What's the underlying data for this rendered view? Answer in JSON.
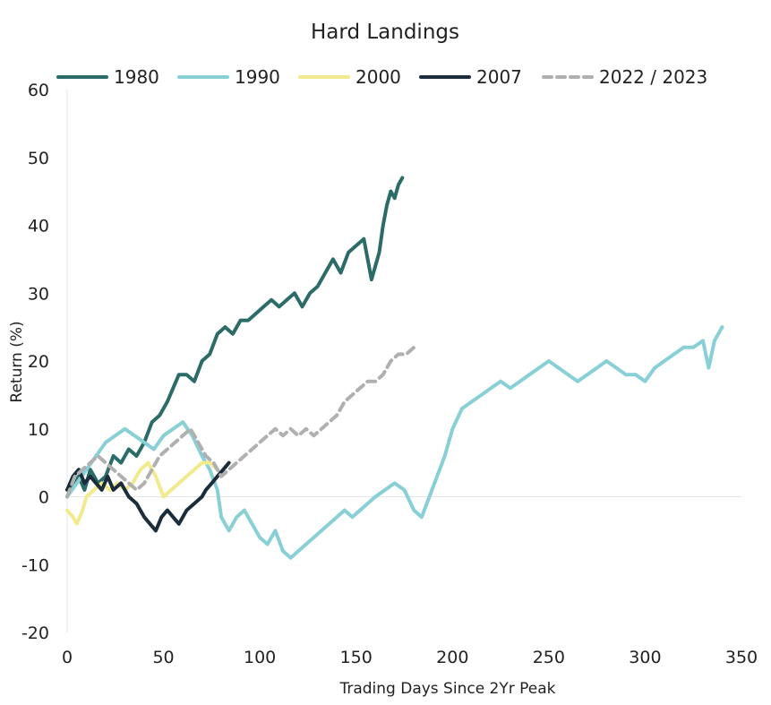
{
  "chart_data": {
    "type": "line",
    "title": "Hard Landings",
    "xlabel": "Trading Days Since 2Yr Peak",
    "ylabel": "Return (%)",
    "xlim": [
      0,
      350
    ],
    "ylim": [
      -20,
      60
    ],
    "xticks": [
      0,
      50,
      100,
      150,
      200,
      250,
      300,
      350
    ],
    "yticks": [
      -20,
      -10,
      0,
      10,
      20,
      30,
      40,
      50,
      60
    ],
    "xtick_labels": [
      "0",
      "50",
      "100",
      "150",
      "200",
      "250",
      "300",
      "350"
    ],
    "ytick_labels": [
      "-20",
      "-10",
      "0",
      "10",
      "20",
      "30",
      "40",
      "50",
      "60"
    ],
    "grid": false,
    "legend_position": "top",
    "series": [
      {
        "name": "1980",
        "color": "#2b6b68",
        "dashed": false,
        "points": [
          [
            0,
            0
          ],
          [
            3,
            2
          ],
          [
            6,
            3
          ],
          [
            9,
            1
          ],
          [
            12,
            4
          ],
          [
            16,
            2
          ],
          [
            20,
            3
          ],
          [
            24,
            6
          ],
          [
            28,
            5
          ],
          [
            32,
            7
          ],
          [
            36,
            6
          ],
          [
            40,
            8
          ],
          [
            44,
            11
          ],
          [
            48,
            12
          ],
          [
            52,
            14
          ],
          [
            55,
            16
          ],
          [
            58,
            18
          ],
          [
            62,
            18
          ],
          [
            66,
            17
          ],
          [
            70,
            20
          ],
          [
            74,
            21
          ],
          [
            78,
            24
          ],
          [
            82,
            25
          ],
          [
            86,
            24
          ],
          [
            90,
            26
          ],
          [
            94,
            26
          ],
          [
            98,
            27
          ],
          [
            102,
            28
          ],
          [
            106,
            29
          ],
          [
            110,
            28
          ],
          [
            114,
            29
          ],
          [
            118,
            30
          ],
          [
            122,
            28
          ],
          [
            126,
            30
          ],
          [
            130,
            31
          ],
          [
            134,
            33
          ],
          [
            138,
            35
          ],
          [
            142,
            33
          ],
          [
            146,
            36
          ],
          [
            150,
            37
          ],
          [
            154,
            38
          ],
          [
            156,
            35
          ],
          [
            158,
            32
          ],
          [
            160,
            34
          ],
          [
            162,
            36
          ],
          [
            164,
            40
          ],
          [
            166,
            43
          ],
          [
            168,
            45
          ],
          [
            170,
            44
          ],
          [
            172,
            46
          ],
          [
            174,
            47
          ]
        ]
      },
      {
        "name": "1990",
        "color": "#88d0d6",
        "dashed": false,
        "points": [
          [
            0,
            0
          ],
          [
            5,
            2
          ],
          [
            10,
            4
          ],
          [
            15,
            6
          ],
          [
            20,
            8
          ],
          [
            25,
            9
          ],
          [
            30,
            10
          ],
          [
            35,
            9
          ],
          [
            40,
            8
          ],
          [
            45,
            7
          ],
          [
            50,
            9
          ],
          [
            55,
            10
          ],
          [
            60,
            11
          ],
          [
            65,
            9
          ],
          [
            70,
            6
          ],
          [
            74,
            4
          ],
          [
            78,
            1
          ],
          [
            80,
            -3
          ],
          [
            84,
            -5
          ],
          [
            88,
            -3
          ],
          [
            92,
            -2
          ],
          [
            96,
            -4
          ],
          [
            100,
            -6
          ],
          [
            104,
            -7
          ],
          [
            108,
            -5
          ],
          [
            112,
            -8
          ],
          [
            116,
            -9
          ],
          [
            120,
            -8
          ],
          [
            124,
            -7
          ],
          [
            128,
            -6
          ],
          [
            132,
            -5
          ],
          [
            136,
            -4
          ],
          [
            140,
            -3
          ],
          [
            144,
            -2
          ],
          [
            148,
            -3
          ],
          [
            152,
            -2
          ],
          [
            156,
            -1
          ],
          [
            160,
            0
          ],
          [
            165,
            1
          ],
          [
            170,
            2
          ],
          [
            175,
            1
          ],
          [
            180,
            -2
          ],
          [
            184,
            -3
          ],
          [
            188,
            0
          ],
          [
            192,
            3
          ],
          [
            196,
            6
          ],
          [
            200,
            10
          ],
          [
            205,
            13
          ],
          [
            210,
            14
          ],
          [
            215,
            15
          ],
          [
            220,
            16
          ],
          [
            225,
            17
          ],
          [
            230,
            16
          ],
          [
            235,
            17
          ],
          [
            240,
            18
          ],
          [
            245,
            19
          ],
          [
            250,
            20
          ],
          [
            255,
            19
          ],
          [
            260,
            18
          ],
          [
            265,
            17
          ],
          [
            270,
            18
          ],
          [
            275,
            19
          ],
          [
            280,
            20
          ],
          [
            285,
            19
          ],
          [
            290,
            18
          ],
          [
            295,
            18
          ],
          [
            300,
            17
          ],
          [
            305,
            19
          ],
          [
            310,
            20
          ],
          [
            315,
            21
          ],
          [
            320,
            22
          ],
          [
            325,
            22
          ],
          [
            330,
            23
          ],
          [
            333,
            19
          ],
          [
            336,
            23
          ],
          [
            340,
            25
          ]
        ]
      },
      {
        "name": "2000",
        "color": "#f2ea8d",
        "dashed": false,
        "points": [
          [
            0,
            -2
          ],
          [
            3,
            -3
          ],
          [
            5,
            -4
          ],
          [
            8,
            -2
          ],
          [
            10,
            0
          ],
          [
            14,
            1
          ],
          [
            18,
            2
          ],
          [
            22,
            1
          ],
          [
            26,
            2
          ],
          [
            30,
            1
          ],
          [
            34,
            2
          ],
          [
            38,
            4
          ],
          [
            42,
            5
          ],
          [
            46,
            3
          ],
          [
            50,
            0
          ],
          [
            54,
            1
          ],
          [
            58,
            2
          ],
          [
            62,
            3
          ],
          [
            66,
            4
          ],
          [
            70,
            5
          ],
          [
            74,
            5
          ],
          [
            78,
            4
          ]
        ]
      },
      {
        "name": "2007",
        "color": "#1b2d3a",
        "dashed": false,
        "points": [
          [
            0,
            1
          ],
          [
            3,
            3
          ],
          [
            6,
            4
          ],
          [
            9,
            2
          ],
          [
            12,
            3
          ],
          [
            15,
            2
          ],
          [
            18,
            1
          ],
          [
            21,
            3
          ],
          [
            24,
            1
          ],
          [
            28,
            2
          ],
          [
            32,
            0
          ],
          [
            36,
            -1
          ],
          [
            40,
            -3
          ],
          [
            43,
            -4
          ],
          [
            46,
            -5
          ],
          [
            49,
            -3
          ],
          [
            52,
            -2
          ],
          [
            55,
            -3
          ],
          [
            58,
            -4
          ],
          [
            62,
            -2
          ],
          [
            66,
            -1
          ],
          [
            70,
            0
          ],
          [
            72,
            1
          ],
          [
            75,
            2
          ],
          [
            78,
            3
          ],
          [
            81,
            4
          ],
          [
            84,
            5
          ]
        ]
      },
      {
        "name": "2022 / 2023",
        "color": "#b0b0b0",
        "dashed": true,
        "points": [
          [
            0,
            0
          ],
          [
            4,
            3
          ],
          [
            8,
            4
          ],
          [
            12,
            5
          ],
          [
            16,
            6
          ],
          [
            20,
            5
          ],
          [
            24,
            4
          ],
          [
            28,
            3
          ],
          [
            32,
            2
          ],
          [
            36,
            1
          ],
          [
            40,
            2
          ],
          [
            44,
            4
          ],
          [
            48,
            6
          ],
          [
            52,
            7
          ],
          [
            56,
            8
          ],
          [
            60,
            9
          ],
          [
            64,
            10
          ],
          [
            68,
            8
          ],
          [
            72,
            6
          ],
          [
            76,
            5
          ],
          [
            80,
            3
          ],
          [
            84,
            4
          ],
          [
            88,
            5
          ],
          [
            92,
            6
          ],
          [
            96,
            7
          ],
          [
            100,
            8
          ],
          [
            104,
            9
          ],
          [
            108,
            10
          ],
          [
            112,
            9
          ],
          [
            116,
            10
          ],
          [
            120,
            9
          ],
          [
            124,
            10
          ],
          [
            128,
            9
          ],
          [
            132,
            10
          ],
          [
            136,
            11
          ],
          [
            140,
            12
          ],
          [
            144,
            14
          ],
          [
            148,
            15
          ],
          [
            152,
            16
          ],
          [
            156,
            17
          ],
          [
            160,
            17
          ],
          [
            164,
            18
          ],
          [
            168,
            20
          ],
          [
            172,
            21
          ],
          [
            176,
            21
          ],
          [
            180,
            22
          ]
        ]
      }
    ]
  }
}
